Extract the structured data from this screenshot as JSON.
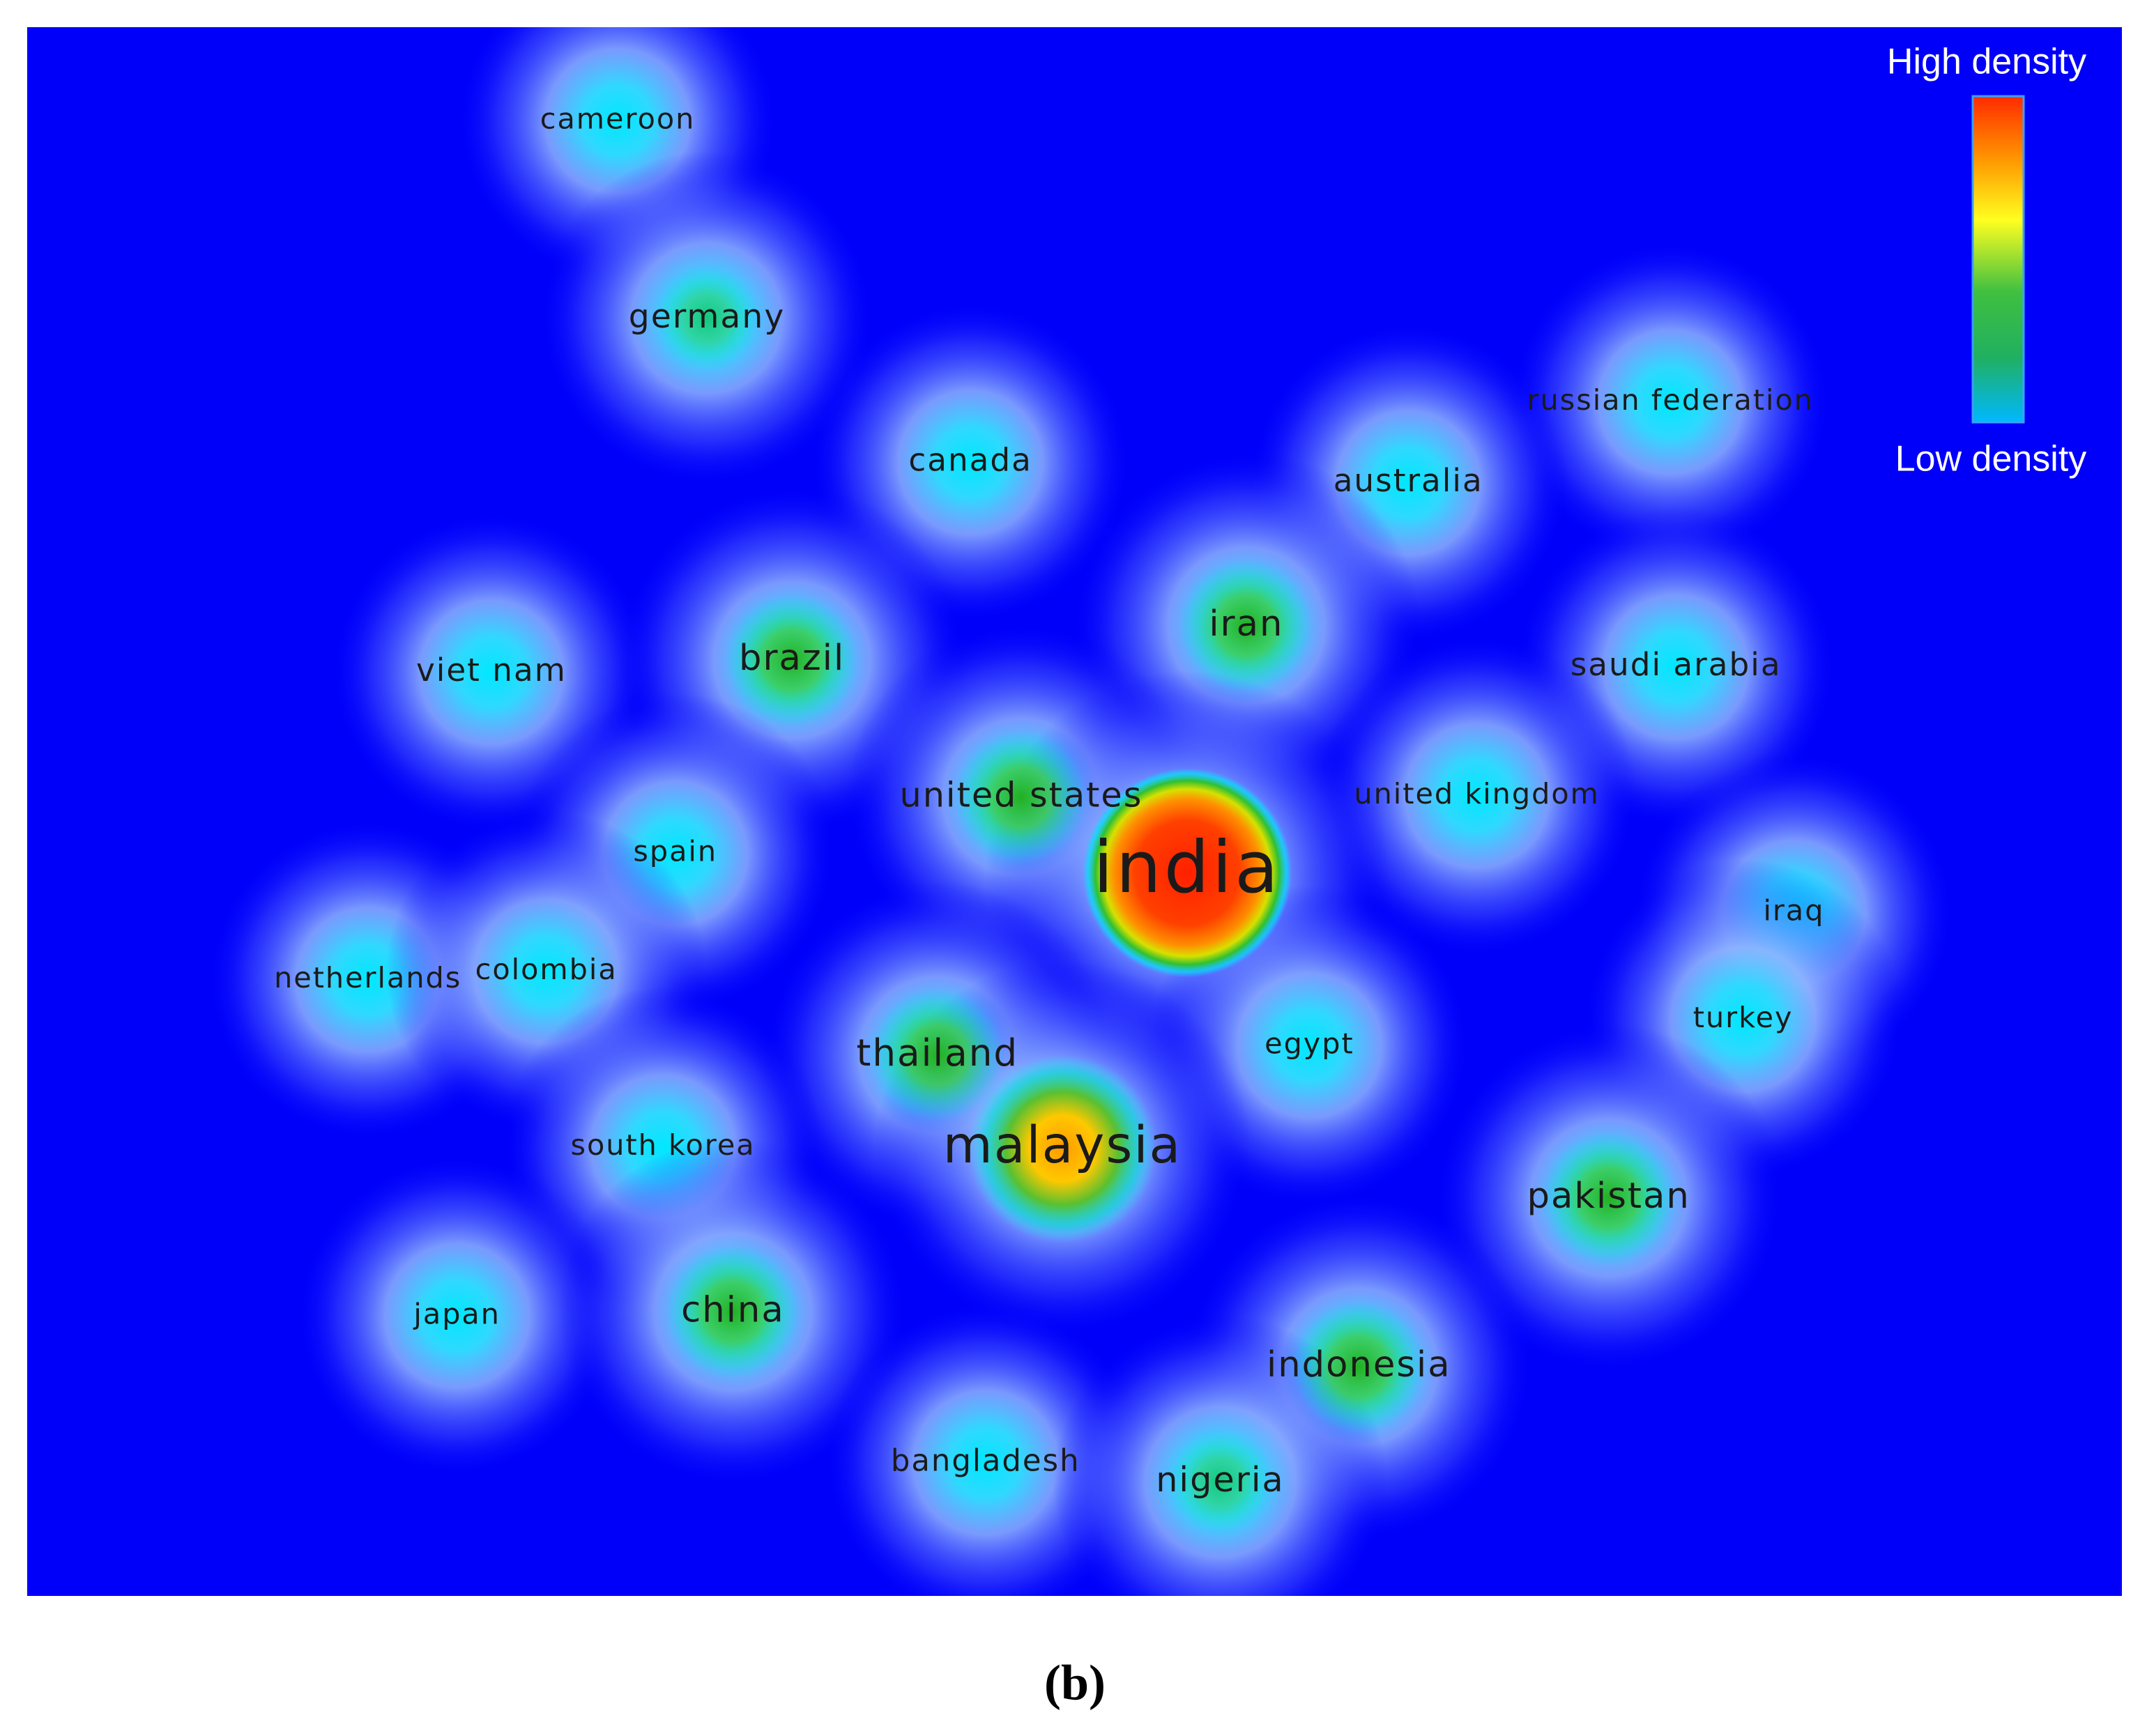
{
  "figure": {
    "nodes": [
      {
        "label": "cameroon"
      },
      {
        "label": "germany"
      },
      {
        "label": "canada"
      },
      {
        "label": "russian federation"
      },
      {
        "label": "australia"
      },
      {
        "label": "viet nam"
      },
      {
        "label": "brazil"
      },
      {
        "label": "iran"
      },
      {
        "label": "saudi arabia"
      },
      {
        "label": "united states"
      },
      {
        "label": "united kingdom"
      },
      {
        "label": "india"
      },
      {
        "label": "spain"
      },
      {
        "label": "iraq"
      },
      {
        "label": "netherlands"
      },
      {
        "label": "colombia"
      },
      {
        "label": "egypt"
      },
      {
        "label": "turkey"
      },
      {
        "label": "thailand"
      },
      {
        "label": "malaysia"
      },
      {
        "label": "south korea"
      },
      {
        "label": "pakistan"
      },
      {
        "label": "japan"
      },
      {
        "label": "china"
      },
      {
        "label": "indonesia"
      },
      {
        "label": "bangladesh"
      },
      {
        "label": "nigeria"
      }
    ],
    "legend": {
      "high": "High density",
      "low": "Low density"
    },
    "caption": "(b)"
  }
}
